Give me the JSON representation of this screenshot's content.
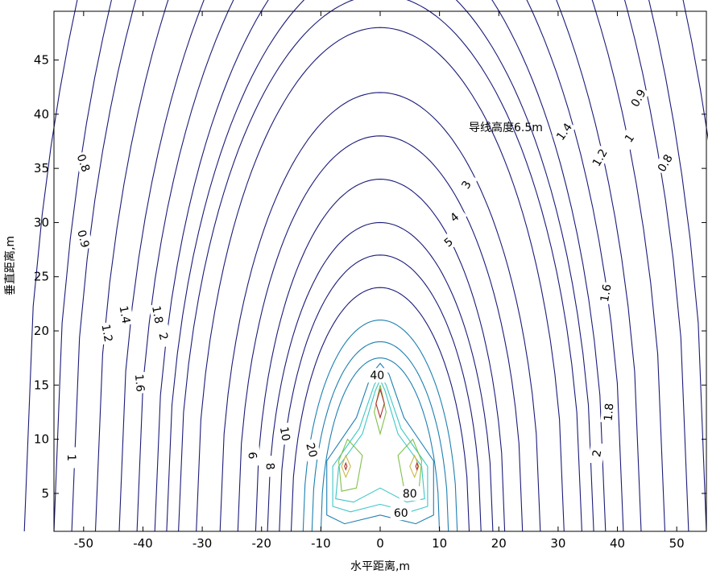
{
  "chart_data": {
    "type": "contour",
    "title": "",
    "xlabel": "水平距离,m",
    "ylabel": "垂直距离,m",
    "annotation": "导线高度6.5m",
    "xlim": [
      -55,
      55
    ],
    "ylim": [
      1.5,
      49.5
    ],
    "xticks": [
      -50,
      -40,
      -30,
      -20,
      -10,
      0,
      10,
      20,
      30,
      40,
      50
    ],
    "yticks": [
      5,
      10,
      15,
      20,
      25,
      30,
      35,
      40,
      45
    ],
    "grid": false,
    "colors": {
      "outer": "#1b1b7a",
      "mid": "#1f7fb0",
      "inner_cyan": "#3ec6c6",
      "inner_green": "#7fc04a",
      "inner_yellow": "#c9b845",
      "inner_red": "#b03030"
    },
    "contour_labels": [
      {
        "text": "0.8",
        "x": -50,
        "y": 35.5,
        "rot": 70
      },
      {
        "text": "0.9",
        "x": -50,
        "y": 28.5,
        "rot": 75
      },
      {
        "text": "1",
        "x": -52,
        "y": 8.3,
        "rot": 90
      },
      {
        "text": "1.2",
        "x": -46,
        "y": 19.8,
        "rot": 80
      },
      {
        "text": "1.4",
        "x": -43,
        "y": 21.5,
        "rot": 80
      },
      {
        "text": "1.6",
        "x": -40.5,
        "y": 15.2,
        "rot": 85
      },
      {
        "text": "1.8",
        "x": -37.5,
        "y": 21.5,
        "rot": 80
      },
      {
        "text": "2",
        "x": -36.5,
        "y": 19.5,
        "rot": 75
      },
      {
        "text": "6",
        "x": -21.5,
        "y": 8.5,
        "rot": 85
      },
      {
        "text": "8",
        "x": -18.5,
        "y": 7.5,
        "rot": 85
      },
      {
        "text": "10",
        "x": -16,
        "y": 10.5,
        "rot": 80
      },
      {
        "text": "20",
        "x": -11.5,
        "y": 9,
        "rot": 75
      },
      {
        "text": "40",
        "x": -0.5,
        "y": 15.9,
        "rot": 0
      },
      {
        "text": "80",
        "x": 5,
        "y": 5,
        "rot": 0
      },
      {
        "text": "60",
        "x": 3.5,
        "y": 3.2,
        "rot": 0
      },
      {
        "text": "3",
        "x": 14.5,
        "y": 33.5,
        "rot": -60
      },
      {
        "text": "4",
        "x": 12.5,
        "y": 30.5,
        "rot": -40
      },
      {
        "text": "5",
        "x": 11.5,
        "y": 28.2,
        "rot": -40
      },
      {
        "text": "1.4",
        "x": 31,
        "y": 38.4,
        "rot": -55
      },
      {
        "text": "1.2",
        "x": 37,
        "y": 36,
        "rot": -60
      },
      {
        "text": "1",
        "x": 42,
        "y": 37.8,
        "rot": -55
      },
      {
        "text": "0.9",
        "x": 43.5,
        "y": 41.5,
        "rot": -60
      },
      {
        "text": "0.8",
        "x": 48,
        "y": 35.5,
        "rot": -60
      },
      {
        "text": "1.6",
        "x": 38,
        "y": 23.5,
        "rot": -80
      },
      {
        "text": "1.8",
        "x": 38.5,
        "y": 12.5,
        "rot": -85
      },
      {
        "text": "2",
        "x": 36.5,
        "y": 8.7,
        "rot": -80
      }
    ]
  }
}
